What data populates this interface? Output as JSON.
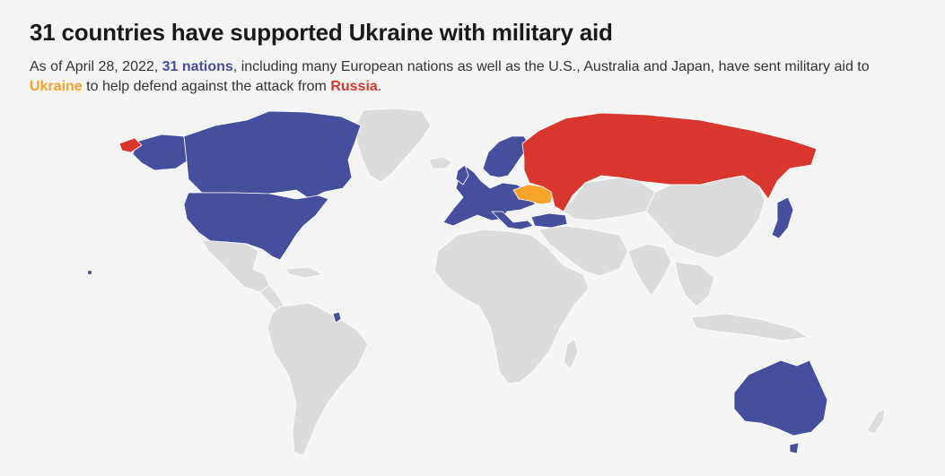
{
  "title": "31 countries have supported Ukraine with military aid",
  "subtitle": {
    "part1": "As of April 28, 2022, ",
    "nations": "31 nations",
    "part2": ", including many European nations as well as the U.S., Australia and Japan, have sent military aid to ",
    "ukraine": "Ukraine",
    "part3": " to help defend against the attack from ",
    "russia": "Russia",
    "part4": "."
  },
  "colors": {
    "background": "#f4f4f4",
    "supporter": "#464f9d",
    "ukraine": "#f3a429",
    "russia": "#d9372d",
    "other_land": "#dcdcdc"
  },
  "map": {
    "supporters_count": 31,
    "highlighted_supporters": [
      "United States",
      "Canada",
      "Australia",
      "Japan",
      "European nations"
    ],
    "aid_recipient": "Ukraine",
    "attacker": "Russia"
  }
}
